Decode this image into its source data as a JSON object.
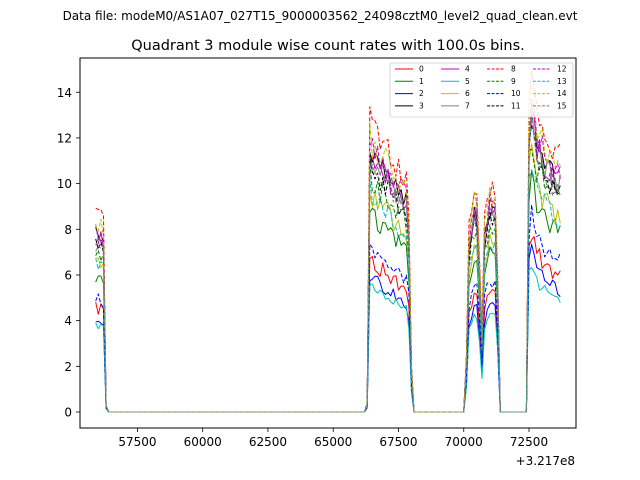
{
  "figure": {
    "suptitle": "Data file: modeM0/AS1A07_027T15_9000003562_24098cztM0_level2_quad_clean.evt"
  },
  "chart_data": {
    "type": "line",
    "title": "Quadrant 3 module wise count rates with 100.0s bins.",
    "xlabel": "",
    "ylabel": "",
    "x_offset_label": "+3.217e8",
    "xlim": [
      55300,
      74300
    ],
    "ylim": [
      -0.7,
      15.5
    ],
    "xticks": [
      57500,
      60000,
      62500,
      65000,
      67500,
      70000,
      72500
    ],
    "xtick_labels": [
      "57500",
      "60000",
      "62500",
      "65000",
      "67500",
      "70000",
      "72500"
    ],
    "yticks": [
      0,
      2,
      4,
      6,
      8,
      10,
      12,
      14
    ],
    "ytick_labels": [
      "0",
      "2",
      "4",
      "6",
      "8",
      "10",
      "12",
      "14"
    ],
    "grid": false,
    "legend_position": "top-right",
    "legend_columns": 4,
    "segments": [
      {
        "start": 55900,
        "n": 5
      },
      {
        "start": 56400,
        "n": 100
      },
      {
        "start": 66400,
        "n": 17
      },
      {
        "start": 68100,
        "n": 20
      },
      {
        "start": 70100,
        "n": 13
      },
      {
        "start": 71400,
        "n": 11
      },
      {
        "start": 72500,
        "n": 13
      }
    ],
    "series": [
      {
        "name": "0",
        "color": "#ff0000",
        "dash": "solid",
        "level": 0.53,
        "jitter": 0.06
      },
      {
        "name": "1",
        "color": "#008000",
        "dash": "solid",
        "level": 0.7,
        "jitter": 0.06
      },
      {
        "name": "2",
        "color": "#0000ff",
        "dash": "solid",
        "level": 0.47,
        "jitter": 0.06
      },
      {
        "name": "3",
        "color": "#000000",
        "dash": "solid",
        "level": 0.9,
        "jitter": 0.05
      },
      {
        "name": "4",
        "color": "#c000c0",
        "dash": "solid",
        "level": 0.9,
        "jitter": 0.06
      },
      {
        "name": "5",
        "color": "#00bfbf",
        "dash": "solid",
        "level": 0.44,
        "jitter": 0.05
      },
      {
        "name": "6",
        "color": "#bfbf00",
        "dash": "solid",
        "level": 0.76,
        "jitter": 0.06
      },
      {
        "name": "7",
        "color": "#808080",
        "dash": "solid",
        "level": 0.88,
        "jitter": 0.05
      },
      {
        "name": "8",
        "color": "#ff0000",
        "dash": "dashed",
        "level": 1.0,
        "jitter": 0.05
      },
      {
        "name": "9",
        "color": "#008000",
        "dash": "dashed",
        "level": 0.82,
        "jitter": 0.06
      },
      {
        "name": "10",
        "color": "#0000ff",
        "dash": "dashed",
        "level": 0.58,
        "jitter": 0.06
      },
      {
        "name": "11",
        "color": "#000000",
        "dash": "dashed",
        "level": 0.85,
        "jitter": 0.05
      },
      {
        "name": "12",
        "color": "#c000c0",
        "dash": "dashed",
        "level": 0.93,
        "jitter": 0.05
      },
      {
        "name": "13",
        "color": "#00bfbf",
        "dash": "dashed",
        "level": 0.75,
        "jitter": 0.06
      },
      {
        "name": "14",
        "color": "#bfbf00",
        "dash": "dashed",
        "level": 0.95,
        "jitter": 0.05
      },
      {
        "name": "15",
        "color": "#808080",
        "dash": "dashed",
        "level": 0.86,
        "jitter": 0.05
      }
    ],
    "base_profile": [
      {
        "x": 55900,
        "y": 8.6
      },
      {
        "x": 56000,
        "y": 8.5
      },
      {
        "x": 56100,
        "y": 8.5
      },
      {
        "x": 56200,
        "y": 8.3
      },
      {
        "x": 56250,
        "y": 5.5
      },
      {
        "x": 56300,
        "y": 0.3
      },
      {
        "x": 56400,
        "y": 0.0
      },
      {
        "x": 66200,
        "y": 0.0
      },
      {
        "x": 66300,
        "y": 0.4
      },
      {
        "x": 66400,
        "y": 12.9
      },
      {
        "x": 66500,
        "y": 12.3
      },
      {
        "x": 66700,
        "y": 12.0
      },
      {
        "x": 67000,
        "y": 11.6
      },
      {
        "x": 67300,
        "y": 11.0
      },
      {
        "x": 67600,
        "y": 10.5
      },
      {
        "x": 67800,
        "y": 10.2
      },
      {
        "x": 67900,
        "y": 8.5
      },
      {
        "x": 68000,
        "y": 2.0
      },
      {
        "x": 68100,
        "y": 0.0
      },
      {
        "x": 70000,
        "y": 0.0
      },
      {
        "x": 70100,
        "y": 2.5
      },
      {
        "x": 70200,
        "y": 8.0
      },
      {
        "x": 70400,
        "y": 9.8
      },
      {
        "x": 70500,
        "y": 9.5
      },
      {
        "x": 70600,
        "y": 7.0
      },
      {
        "x": 70700,
        "y": 3.5
      },
      {
        "x": 70800,
        "y": 8.5
      },
      {
        "x": 71000,
        "y": 9.9
      },
      {
        "x": 71200,
        "y": 9.7
      },
      {
        "x": 71300,
        "y": 6.0
      },
      {
        "x": 71400,
        "y": 0.0
      },
      {
        "x": 72400,
        "y": 0.0
      },
      {
        "x": 72500,
        "y": 13.5
      },
      {
        "x": 72600,
        "y": 14.8
      },
      {
        "x": 72800,
        "y": 13.0
      },
      {
        "x": 73100,
        "y": 12.2
      },
      {
        "x": 73400,
        "y": 11.6
      },
      {
        "x": 73600,
        "y": 11.2
      },
      {
        "x": 73700,
        "y": 11.4
      },
      {
        "x": 73800,
        "y": 2.0
      }
    ]
  }
}
